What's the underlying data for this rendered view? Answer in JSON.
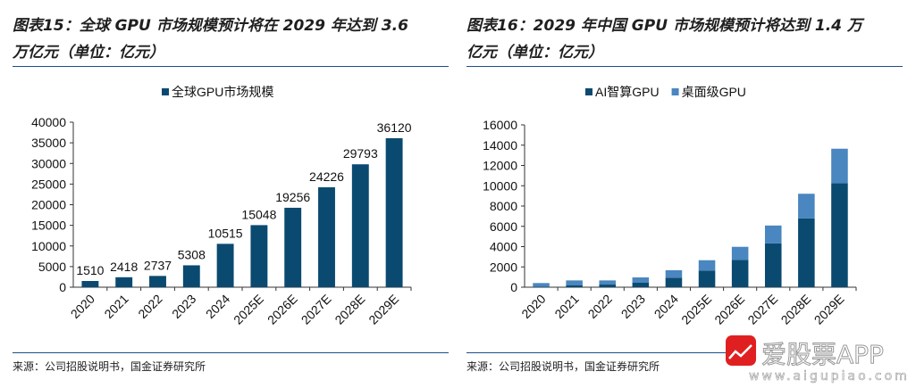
{
  "left": {
    "title": "图表15：全球 GPU 市场规模预计将在 2029 年达到 3.6 万亿元（单位：亿元）",
    "title_line1": "图表15：全球 GPU 市场规模预计将在 2029 年达到 3.6",
    "title_line2": "万亿元（单位：亿元）",
    "source": "来源：公司招股说明书，国金证券研究所"
  },
  "right": {
    "title_line1": "图表16：2029 年中国 GPU 市场规模预计将达到 1.4 万",
    "title_line2": "亿元（单位：亿元）",
    "source": "来源：公司招股说明书，国金证券研究所"
  },
  "watermark": {
    "brand": "爱股票APP",
    "url": "www.aigupiao.com",
    "icon_text": "爱股票"
  },
  "chart_data": [
    {
      "type": "bar",
      "categories": [
        "2020",
        "2021",
        "2022",
        "2023",
        "2024",
        "2025E",
        "2026E",
        "2027E",
        "2028E",
        "2029E"
      ],
      "series": [
        {
          "name": "全球GPU市场规模",
          "values": [
            1510,
            2418,
            2737,
            5308,
            10515,
            15048,
            19256,
            24226,
            29793,
            36120
          ],
          "color": "#0b4a70"
        }
      ],
      "data_labels": true,
      "ylim": [
        0,
        40000
      ],
      "yticks": [
        0,
        5000,
        10000,
        15000,
        20000,
        25000,
        30000,
        35000,
        40000
      ],
      "legend": "top",
      "grid": false
    },
    {
      "type": "bar",
      "stacked": true,
      "categories": [
        "2020",
        "2021",
        "2022",
        "2023",
        "2024",
        "2025E",
        "2026E",
        "2027E",
        "2028E",
        "2029E"
      ],
      "series": [
        {
          "name": "AI智算GPU",
          "values": [
            50,
            175,
            260,
            440,
            935,
            1640,
            2690,
            4330,
            6780,
            10260
          ],
          "color": "#0b4a70"
        },
        {
          "name": "桌面级GPU",
          "values": [
            360,
            495,
            410,
            525,
            735,
            1020,
            1290,
            1750,
            2430,
            3390
          ],
          "color": "#4a86c0"
        }
      ],
      "ylim": [
        0,
        16000
      ],
      "yticks": [
        0,
        2000,
        4000,
        6000,
        8000,
        10000,
        12000,
        14000,
        16000
      ],
      "legend": "top",
      "grid": false
    }
  ]
}
